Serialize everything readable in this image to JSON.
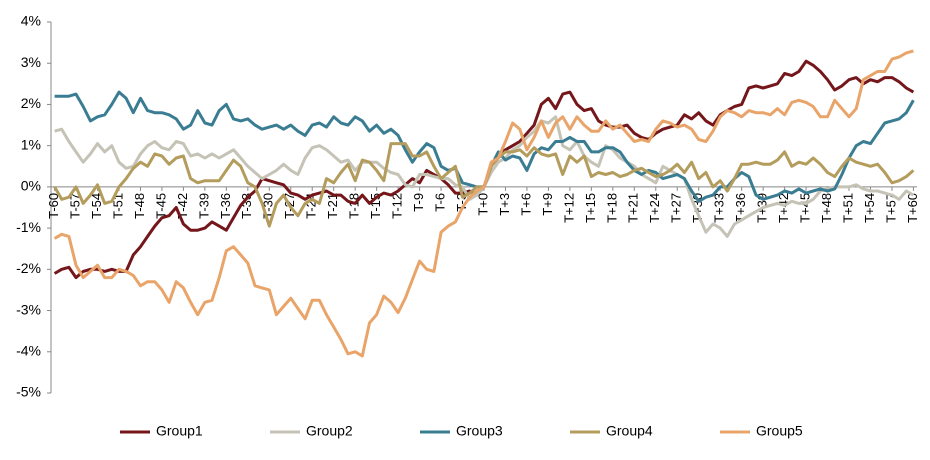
{
  "chart_data": {
    "type": "line",
    "categories": [
      "T-60",
      null,
      null,
      "T-57",
      null,
      null,
      "T-54",
      null,
      null,
      "T-51",
      null,
      null,
      "T-48",
      null,
      null,
      "T-45",
      null,
      null,
      "T-42",
      null,
      null,
      "T-39",
      null,
      null,
      "T-36",
      null,
      null,
      "T-33",
      null,
      null,
      "T-30",
      null,
      null,
      "T-27",
      null,
      null,
      "T-24",
      null,
      null,
      "T-21",
      null,
      null,
      "T-18",
      null,
      null,
      "T-15",
      null,
      null,
      "T-12",
      null,
      null,
      "T-9",
      null,
      null,
      "T-6",
      null,
      null,
      "T-3",
      null,
      null,
      "T+0",
      null,
      null,
      "T+3",
      null,
      null,
      "T+6",
      null,
      null,
      "T+9",
      null,
      null,
      "T+12",
      null,
      null,
      "T+15",
      null,
      null,
      "T+18",
      null,
      null,
      "T+21",
      null,
      null,
      "T+24",
      null,
      null,
      "T+27",
      null,
      null,
      "T+30",
      null,
      null,
      "T+33",
      null,
      null,
      "T+36",
      null,
      null,
      "T+39",
      null,
      null,
      "T+42",
      null,
      null,
      "T+45",
      null,
      null,
      "T+48",
      null,
      null,
      "T+51",
      null,
      null,
      "T+54",
      null,
      null,
      "T+57",
      null,
      null,
      "T+60"
    ],
    "series": [
      {
        "name": "Group1",
        "color": "#74161a",
        "values": [
          -2.1,
          -2.0,
          -1.95,
          -2.2,
          -2.05,
          -2.0,
          -2.0,
          -2.05,
          -2.0,
          -2.05,
          -2.05,
          -1.65,
          -1.45,
          -1.2,
          -0.95,
          -0.75,
          -0.7,
          -0.5,
          -0.9,
          -1.05,
          -1.05,
          -1.0,
          -0.85,
          -0.95,
          -1.05,
          -0.75,
          -0.45,
          -0.25,
          -0.1,
          0.2,
          0.15,
          0.1,
          0.05,
          -0.15,
          -0.2,
          -0.3,
          -0.2,
          -0.15,
          -0.1,
          -0.2,
          -0.2,
          -0.35,
          -0.4,
          -0.2,
          -0.4,
          -0.25,
          -0.15,
          -0.2,
          -0.1,
          0.05,
          0.2,
          0.1,
          0.4,
          0.3,
          0.2,
          0.05,
          -0.15,
          -0.15,
          -0.1,
          -0.2,
          0.0,
          0.5,
          0.8,
          0.9,
          1.0,
          1.1,
          1.3,
          1.5,
          2.0,
          2.15,
          1.9,
          2.25,
          2.3,
          2.0,
          1.85,
          1.9,
          1.6,
          1.5,
          1.45,
          1.45,
          1.5,
          1.3,
          1.2,
          1.15,
          1.3,
          1.4,
          1.45,
          1.5,
          1.75,
          1.65,
          1.8,
          1.6,
          1.5,
          1.75,
          1.85,
          1.95,
          2.0,
          2.4,
          2.45,
          2.4,
          2.45,
          2.5,
          2.75,
          2.7,
          2.8,
          3.05,
          2.95,
          2.8,
          2.6,
          2.35,
          2.45,
          2.6,
          2.65,
          2.5,
          2.6,
          2.55,
          2.65,
          2.65,
          2.55,
          2.4,
          2.3
        ]
      },
      {
        "name": "Group2",
        "color": "#c5c3b6",
        "values": [
          1.35,
          1.4,
          1.1,
          0.85,
          0.6,
          0.8,
          1.05,
          0.85,
          1.0,
          0.6,
          0.45,
          0.5,
          0.8,
          1.0,
          1.1,
          0.95,
          0.9,
          1.1,
          1.05,
          0.75,
          0.8,
          0.7,
          0.8,
          0.7,
          0.8,
          0.9,
          0.7,
          0.5,
          0.35,
          0.2,
          0.3,
          0.4,
          0.55,
          0.4,
          0.3,
          0.7,
          0.95,
          1.0,
          0.9,
          0.75,
          0.6,
          0.65,
          0.4,
          0.6,
          0.6,
          0.6,
          0.45,
          0.35,
          0.3,
          0.05,
          0.0,
          0.3,
          0.3,
          0.25,
          0.2,
          0.2,
          0.05,
          0.0,
          -0.3,
          -0.2,
          0.0,
          0.35,
          0.6,
          0.7,
          0.9,
          1.0,
          1.2,
          1.35,
          1.6,
          1.55,
          1.7,
          1.0,
          0.9,
          1.1,
          0.75,
          0.6,
          0.5,
          1.0,
          0.9,
          0.7,
          0.6,
          0.5,
          0.3,
          0.2,
          0.1,
          0.5,
          0.4,
          0.3,
          0.2,
          -0.3,
          -0.7,
          -1.1,
          -0.9,
          -1.0,
          -1.2,
          -0.9,
          -0.8,
          -0.7,
          -0.6,
          -0.5,
          -0.45,
          -0.4,
          -0.45,
          -0.35,
          -0.4,
          -0.4,
          -0.3,
          -0.1,
          -0.05,
          0.0,
          0.0,
          0.0,
          0.05,
          -0.05,
          -0.1,
          -0.1,
          -0.15,
          -0.2,
          -0.3,
          -0.1,
          -0.2
        ]
      },
      {
        "name": "Group3",
        "color": "#3a7d92",
        "values": [
          2.2,
          2.2,
          2.2,
          2.25,
          1.95,
          1.6,
          1.7,
          1.75,
          2.0,
          2.3,
          2.15,
          1.8,
          2.15,
          1.85,
          1.8,
          1.8,
          1.75,
          1.65,
          1.4,
          1.5,
          1.85,
          1.55,
          1.5,
          1.85,
          2.0,
          1.65,
          1.6,
          1.65,
          1.5,
          1.4,
          1.45,
          1.5,
          1.4,
          1.5,
          1.35,
          1.25,
          1.5,
          1.55,
          1.45,
          1.7,
          1.55,
          1.5,
          1.7,
          1.6,
          1.35,
          1.5,
          1.3,
          1.4,
          1.25,
          0.9,
          0.6,
          0.85,
          1.05,
          0.95,
          0.5,
          0.4,
          0.45,
          0.1,
          0.05,
          0.0,
          0.0,
          0.5,
          0.85,
          0.65,
          0.75,
          0.7,
          0.4,
          0.8,
          0.95,
          0.9,
          1.1,
          1.1,
          1.2,
          1.1,
          1.1,
          0.85,
          0.85,
          0.95,
          0.95,
          0.85,
          0.6,
          0.4,
          0.3,
          0.4,
          0.35,
          0.2,
          0.25,
          0.3,
          0.2,
          -0.1,
          -0.35,
          -0.25,
          -0.2,
          0.0,
          0.0,
          0.2,
          0.35,
          0.25,
          -0.2,
          -0.3,
          -0.25,
          -0.2,
          -0.1,
          -0.15,
          -0.05,
          -0.15,
          -0.1,
          -0.05,
          -0.1,
          -0.05,
          0.3,
          0.7,
          1.0,
          1.1,
          1.05,
          1.3,
          1.55,
          1.6,
          1.65,
          1.8,
          2.1
        ]
      },
      {
        "name": "Group4",
        "color": "#b49c5c",
        "values": [
          0.0,
          -0.3,
          -0.25,
          0.0,
          -0.4,
          -0.2,
          0.05,
          -0.4,
          -0.35,
          0.0,
          0.2,
          0.45,
          0.6,
          0.5,
          0.8,
          0.75,
          0.55,
          0.7,
          0.75,
          0.2,
          0.1,
          0.15,
          0.15,
          0.15,
          0.4,
          0.65,
          0.5,
          0.1,
          0.0,
          -0.4,
          -0.95,
          -0.4,
          -0.2,
          -0.5,
          -0.7,
          -0.4,
          -0.3,
          -0.4,
          0.2,
          0.1,
          0.35,
          0.55,
          0.15,
          0.65,
          0.6,
          0.4,
          0.15,
          1.05,
          1.05,
          1.05,
          0.75,
          0.75,
          0.85,
          0.5,
          0.2,
          0.35,
          0.5,
          -0.25,
          -0.15,
          0.0,
          0.0,
          0.5,
          0.7,
          0.85,
          0.85,
          0.9,
          0.75,
          0.95,
          0.8,
          0.75,
          0.8,
          0.3,
          0.75,
          0.6,
          0.75,
          0.25,
          0.35,
          0.3,
          0.35,
          0.25,
          0.3,
          0.4,
          0.45,
          0.35,
          0.25,
          0.3,
          0.4,
          0.55,
          0.35,
          0.6,
          0.2,
          0.35,
          0.0,
          0.15,
          -0.1,
          0.2,
          0.55,
          0.55,
          0.6,
          0.55,
          0.55,
          0.65,
          0.85,
          0.5,
          0.6,
          0.55,
          0.7,
          0.55,
          0.35,
          0.25,
          0.5,
          0.7,
          0.6,
          0.55,
          0.5,
          0.55,
          0.35,
          0.1,
          0.15,
          0.25,
          0.4
        ]
      },
      {
        "name": "Group5",
        "color": "#e9a46a",
        "values": [
          -1.25,
          -1.15,
          -1.2,
          -1.9,
          -2.2,
          -2.05,
          -1.9,
          -2.2,
          -2.2,
          -2.0,
          -2.05,
          -2.15,
          -2.4,
          -2.3,
          -2.3,
          -2.5,
          -2.8,
          -2.3,
          -2.45,
          -2.8,
          -3.1,
          -2.8,
          -2.75,
          -2.2,
          -1.55,
          -1.45,
          -1.65,
          -1.85,
          -2.4,
          -2.45,
          -2.5,
          -3.1,
          -2.9,
          -2.7,
          -2.95,
          -3.2,
          -2.75,
          -2.75,
          -3.1,
          -3.4,
          -3.7,
          -4.05,
          -4.0,
          -4.1,
          -3.3,
          -3.1,
          -2.65,
          -2.8,
          -3.05,
          -2.7,
          -2.25,
          -1.8,
          -2.0,
          -2.05,
          -1.1,
          -0.95,
          -0.85,
          -0.5,
          -0.25,
          -0.1,
          0.0,
          0.6,
          0.7,
          1.1,
          1.55,
          1.4,
          0.9,
          1.2,
          1.6,
          1.2,
          1.55,
          1.7,
          1.4,
          1.7,
          1.5,
          1.35,
          1.35,
          1.6,
          1.4,
          1.5,
          1.3,
          1.1,
          1.15,
          1.1,
          1.4,
          1.6,
          1.55,
          1.45,
          1.5,
          1.4,
          1.15,
          1.1,
          1.35,
          1.7,
          1.85,
          1.8,
          1.7,
          1.85,
          1.8,
          1.8,
          1.75,
          1.9,
          1.75,
          2.05,
          2.1,
          2.05,
          1.95,
          1.7,
          1.7,
          2.1,
          1.9,
          1.7,
          1.9,
          2.6,
          2.7,
          2.8,
          2.8,
          3.1,
          3.15,
          3.25,
          3.3
        ]
      }
    ],
    "ylim": [
      -5,
      4
    ],
    "yticks": [
      {
        "value": -5,
        "label": "-5%"
      },
      {
        "value": -4,
        "label": "-4%"
      },
      {
        "value": -3,
        "label": "-3%"
      },
      {
        "value": -2,
        "label": "-2%"
      },
      {
        "value": -1,
        "label": "-1%"
      },
      {
        "value": 0,
        "label": "0%"
      },
      {
        "value": 1,
        "label": "1%"
      },
      {
        "value": 2,
        "label": "2%"
      },
      {
        "value": 3,
        "label": "3%"
      },
      {
        "value": 4,
        "label": "4%"
      }
    ],
    "grid": false,
    "legend": "bottom"
  }
}
